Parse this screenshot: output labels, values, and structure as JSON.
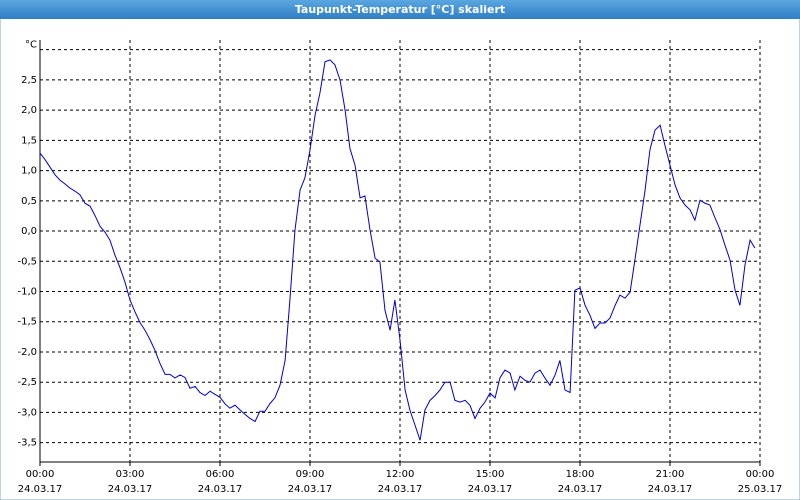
{
  "chart_data": {
    "type": "line",
    "title": "Taupunkt-Temperatur [°C] skaliert",
    "color": "#0000cc",
    "grid": true,
    "xlim": [
      0,
      24
    ],
    "xticks": [
      {
        "value": 0,
        "label": "00:00",
        "date": "24.03.17"
      },
      {
        "value": 3,
        "label": "03:00",
        "date": "24.03.17"
      },
      {
        "value": 6,
        "label": "06:00",
        "date": "24.03.17"
      },
      {
        "value": 9,
        "label": "09:00",
        "date": "24.03.17"
      },
      {
        "value": 12,
        "label": "12:00",
        "date": "24.03.17"
      },
      {
        "value": 15,
        "label": "15:00",
        "date": "24.03.17"
      },
      {
        "value": 18,
        "label": "18:00",
        "date": "24.03.17"
      },
      {
        "value": 21,
        "label": "21:00",
        "date": "24.03.17"
      },
      {
        "value": 24,
        "label": "00:00",
        "date": "25.03.17"
      }
    ],
    "ylim": [
      -3.82,
      3.16
    ],
    "yticks": [
      {
        "value": -3.5,
        "label": "-3,5"
      },
      {
        "value": -3,
        "label": "-3,0"
      },
      {
        "value": -2.5,
        "label": "-2,5"
      },
      {
        "value": -2,
        "label": "-2,0"
      },
      {
        "value": -1.5,
        "label": "-1,5"
      },
      {
        "value": -1,
        "label": "-1,0"
      },
      {
        "value": -0.5,
        "label": "-0,5"
      },
      {
        "value": 0,
        "label": "0,0"
      },
      {
        "value": 0.5,
        "label": "0,5"
      },
      {
        "value": 1,
        "label": "1,0"
      },
      {
        "value": 1.5,
        "label": "1,5"
      },
      {
        "value": 2,
        "label": "2,0"
      },
      {
        "value": 2.5,
        "label": "2,5"
      },
      {
        "value": 3,
        "label": "°C"
      }
    ],
    "x": [
      0,
      0.17,
      0.33,
      0.5,
      0.67,
      0.83,
      1,
      1.17,
      1.33,
      1.5,
      1.67,
      1.83,
      2,
      2.17,
      2.33,
      2.5,
      2.67,
      2.83,
      3,
      3.17,
      3.33,
      3.5,
      3.67,
      3.83,
      4,
      4.17,
      4.33,
      4.5,
      4.67,
      4.83,
      5,
      5.17,
      5.33,
      5.5,
      5.67,
      5.83,
      6,
      6.17,
      6.33,
      6.5,
      6.67,
      6.83,
      7,
      7.17,
      7.33,
      7.5,
      7.67,
      7.83,
      8,
      8.17,
      8.33,
      8.5,
      8.67,
      8.83,
      9,
      9.17,
      9.33,
      9.5,
      9.67,
      9.83,
      10,
      10.17,
      10.33,
      10.5,
      10.67,
      10.83,
      11,
      11.17,
      11.33,
      11.5,
      11.67,
      11.83,
      12,
      12.17,
      12.33,
      12.5,
      12.67,
      12.83,
      13,
      13.17,
      13.33,
      13.5,
      13.67,
      13.83,
      14,
      14.17,
      14.33,
      14.5,
      14.67,
      14.83,
      15,
      15.17,
      15.33,
      15.5,
      15.67,
      15.83,
      16,
      16.17,
      16.33,
      16.5,
      16.67,
      16.83,
      17,
      17.17,
      17.33,
      17.5,
      17.67,
      17.83,
      18,
      18.17,
      18.33,
      18.5,
      18.67,
      18.83,
      19,
      19.17,
      19.33,
      19.5,
      19.67,
      19.83,
      20,
      20.17,
      20.33,
      20.5,
      20.67,
      20.83,
      21,
      21.17,
      21.33,
      21.5,
      21.67,
      21.83,
      22,
      22.17,
      22.33,
      22.5,
      22.67,
      22.83,
      23,
      23.17,
      23.33,
      23.5,
      23.67,
      23.83
    ],
    "values": [
      1.29,
      1.18,
      1.06,
      0.93,
      0.84,
      0.78,
      0.71,
      0.66,
      0.6,
      0.46,
      0.41,
      0.26,
      0.08,
      -0.02,
      -0.15,
      -0.4,
      -0.61,
      -0.84,
      -1.14,
      -1.34,
      -1.51,
      -1.64,
      -1.8,
      -1.97,
      -2.19,
      -2.37,
      -2.37,
      -2.43,
      -2.38,
      -2.42,
      -2.6,
      -2.57,
      -2.67,
      -2.72,
      -2.65,
      -2.7,
      -2.75,
      -2.86,
      -2.93,
      -2.88,
      -2.96,
      -3.03,
      -3.1,
      -3.15,
      -2.98,
      -2.98,
      -2.85,
      -2.76,
      -2.55,
      -2.14,
      -1.14,
      0.02,
      0.68,
      0.88,
      1.34,
      1.92,
      2.28,
      2.8,
      2.83,
      2.75,
      2.5,
      2,
      1.37,
      1.09,
      0.55,
      0.58,
      0.02,
      -0.45,
      -0.51,
      -1.31,
      -1.64,
      -1.14,
      -1.8,
      -2.63,
      -2.96,
      -3.21,
      -3.46,
      -2.96,
      -2.8,
      -2.72,
      -2.63,
      -2.5,
      -2.5,
      -2.8,
      -2.83,
      -2.8,
      -2.88,
      -3.1,
      -2.93,
      -2.83,
      -2.68,
      -2.76,
      -2.43,
      -2.3,
      -2.35,
      -2.63,
      -2.4,
      -2.47,
      -2.5,
      -2.35,
      -2.3,
      -2.43,
      -2.55,
      -2.38,
      -2.14,
      -2.63,
      -2.67,
      -0.98,
      -0.94,
      -1.23,
      -1.39,
      -1.61,
      -1.52,
      -1.52,
      -1.44,
      -1.23,
      -1.06,
      -1.11,
      -1.01,
      -0.48,
      0.1,
      0.68,
      1.34,
      1.67,
      1.75,
      1.42,
      1.09,
      0.76,
      0.55,
      0.43,
      0.35,
      0.18,
      0.51,
      0.46,
      0.43,
      0.22,
      0.02,
      -0.23,
      -0.48,
      -0.98,
      -1.23,
      -0.56,
      -0.15,
      -0.28
    ]
  }
}
